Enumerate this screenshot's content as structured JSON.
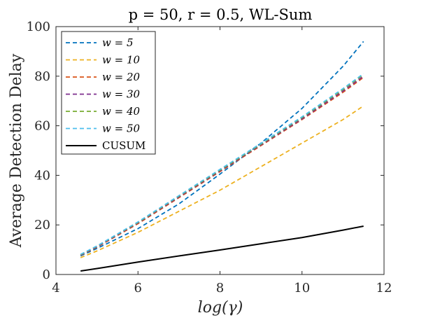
{
  "chart_data": {
    "type": "line",
    "title": "p = 50, r = 0.5, WL-Sum",
    "xlabel": "log(γ)",
    "ylabel": "Average Detection Delay",
    "xlim": [
      4,
      12
    ],
    "ylim": [
      0,
      100
    ],
    "xticks": [
      "4",
      "6",
      "8",
      "10",
      "12"
    ],
    "yticks": [
      "0",
      "20",
      "40",
      "60",
      "80",
      "100"
    ],
    "legend_position": "top-left",
    "grid": false,
    "x": [
      4.6,
      5.0,
      6.0,
      7.0,
      8.0,
      9.0,
      10.0,
      11.0,
      11.5
    ],
    "series": [
      {
        "name": "w = 5",
        "color": "#0072BD",
        "style": "dashed",
        "values": [
          7.5,
          10.5,
          18.5,
          28.5,
          40.5,
          53.0,
          67.0,
          84.0,
          94.0
        ]
      },
      {
        "name": "w = 10",
        "color": "#EDB120",
        "style": "dashed",
        "values": [
          6.8,
          9.5,
          17.0,
          25.5,
          34.0,
          43.5,
          53.0,
          62.5,
          68.0
        ]
      },
      {
        "name": "w = 20",
        "color": "#D95319",
        "style": "dashed",
        "values": [
          7.8,
          11.0,
          20.5,
          31.0,
          41.5,
          52.0,
          62.5,
          73.5,
          79.5
        ]
      },
      {
        "name": "w = 30",
        "color": "#7E2F8E",
        "style": "dashed",
        "values": [
          7.9,
          11.2,
          20.8,
          31.3,
          41.8,
          52.3,
          62.8,
          74.0,
          80.0
        ]
      },
      {
        "name": "w = 40",
        "color": "#77AC30",
        "style": "dashed",
        "values": [
          8.0,
          11.4,
          21.0,
          31.6,
          42.1,
          52.6,
          63.3,
          74.6,
          80.7
        ]
      },
      {
        "name": "w = 50",
        "color": "#4DBEEE",
        "style": "dashed",
        "values": [
          8.1,
          11.5,
          21.2,
          31.8,
          42.4,
          52.9,
          63.6,
          75.0,
          81.0
        ]
      },
      {
        "name": "CUSUM",
        "color": "#000000",
        "style": "solid",
        "values": [
          1.4,
          2.4,
          5.0,
          7.5,
          9.9,
          12.4,
          14.9,
          17.9,
          19.5
        ]
      }
    ]
  }
}
